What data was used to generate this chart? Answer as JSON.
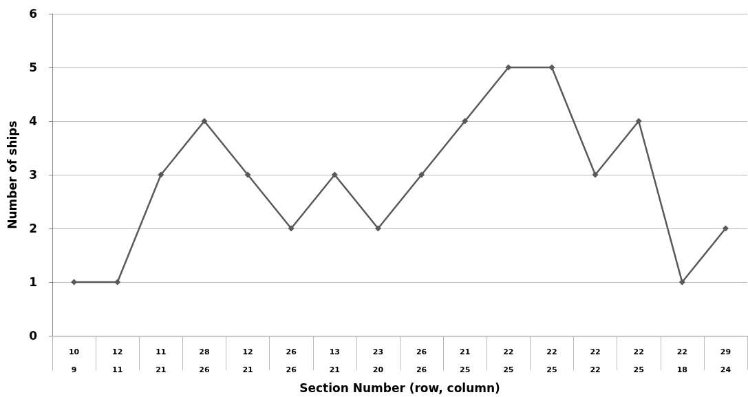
{
  "chart_data": {
    "type": "line",
    "xlabel": "Section Number (row, column)",
    "ylabel": "Number of ships",
    "categories": [
      "10\n9",
      "12\n11",
      "11\n21",
      "28\n26",
      "12\n21",
      "26\n26",
      "13\n21",
      "23\n20",
      "26\n26",
      "21\n25",
      "22\n25",
      "22\n25",
      "22\n22",
      "22\n25",
      "22\n18",
      "29\n24"
    ],
    "series": [
      {
        "color": "#595959",
        "values": [
          1,
          1,
          3,
          4,
          3,
          2,
          3,
          2,
          3,
          4,
          5,
          5,
          3,
          4,
          1,
          2
        ]
      }
    ],
    "ylim": [
      0,
      6
    ],
    "yticks": [
      0,
      1,
      2,
      3,
      4,
      5,
      6
    ],
    "grid": "y",
    "marker": "diamond",
    "line_style": "solid"
  }
}
